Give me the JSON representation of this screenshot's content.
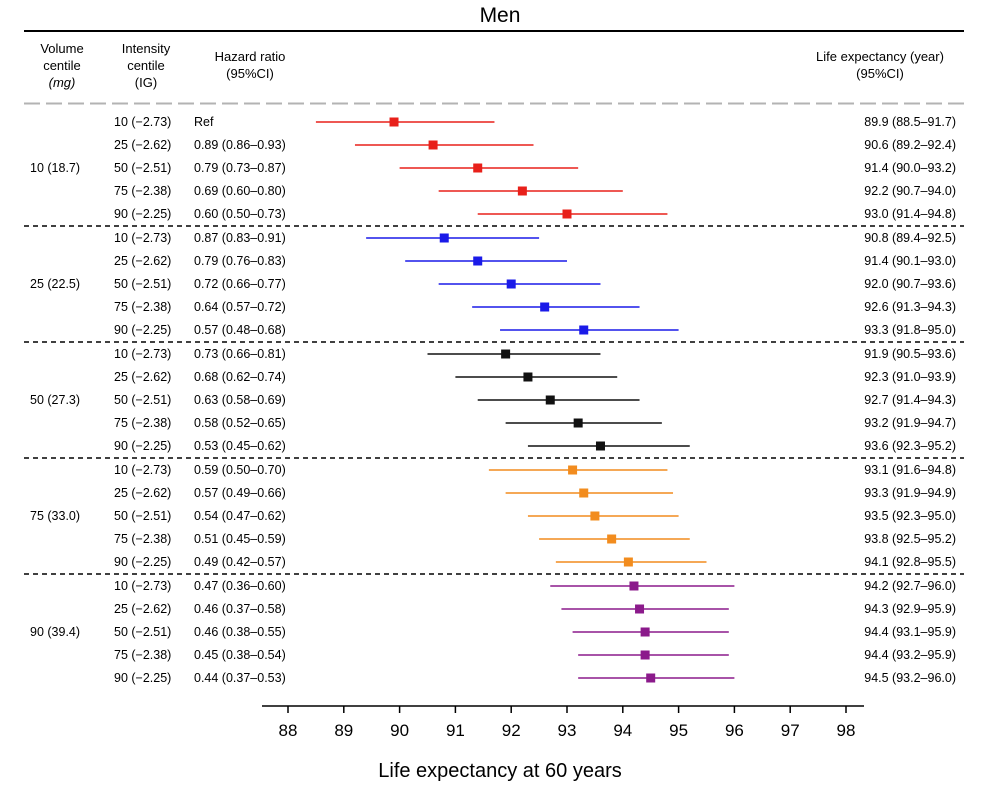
{
  "panel_title": "Men",
  "headers": {
    "volume_line1": "Volume",
    "volume_line2": "centile",
    "volume_unit": "(mg)",
    "intensity_line1": "Intensity",
    "intensity_line2": "centile",
    "intensity_line3": "(IG)",
    "hr_line1": "Hazard ratio",
    "hr_line2": "(95%CI)",
    "le_line1": "Life expectancy (year)",
    "le_line2": "(95%CI)"
  },
  "chart_data": {
    "type": "forest",
    "xlabel": "Life expectancy at 60 years",
    "xlim": [
      88,
      98
    ],
    "xticks": [
      "88",
      "89",
      "90",
      "91",
      "92",
      "93",
      "94",
      "95",
      "96",
      "97",
      "98"
    ],
    "groups": [
      {
        "label": "10 (18.7)",
        "color": "#e8201a",
        "rows": [
          {
            "intensity": "10 (−2.73)",
            "hr": "Ref",
            "le": "89.9 (88.5–91.7)",
            "est": 89.9,
            "lo": 88.5,
            "hi": 91.7
          },
          {
            "intensity": "25 (−2.62)",
            "hr": "0.89 (0.86–0.93)",
            "le": "90.6 (89.2–92.4)",
            "est": 90.6,
            "lo": 89.2,
            "hi": 92.4
          },
          {
            "intensity": "50 (−2.51)",
            "hr": "0.79 (0.73–0.87)",
            "le": "91.4 (90.0–93.2)",
            "est": 91.4,
            "lo": 90.0,
            "hi": 93.2
          },
          {
            "intensity": "75 (−2.38)",
            "hr": "0.69 (0.60–0.80)",
            "le": "92.2 (90.7–94.0)",
            "est": 92.2,
            "lo": 90.7,
            "hi": 94.0
          },
          {
            "intensity": "90 (−2.25)",
            "hr": "0.60 (0.50–0.73)",
            "le": "93.0 (91.4–94.8)",
            "est": 93.0,
            "lo": 91.4,
            "hi": 94.8
          }
        ]
      },
      {
        "label": "25 (22.5)",
        "color": "#1a1ae8",
        "rows": [
          {
            "intensity": "10 (−2.73)",
            "hr": "0.87 (0.83–0.91)",
            "le": "90.8 (89.4–92.5)",
            "est": 90.8,
            "lo": 89.4,
            "hi": 92.5
          },
          {
            "intensity": "25 (−2.62)",
            "hr": "0.79 (0.76–0.83)",
            "le": "91.4 (90.1–93.0)",
            "est": 91.4,
            "lo": 90.1,
            "hi": 93.0
          },
          {
            "intensity": "50 (−2.51)",
            "hr": "0.72 (0.66–0.77)",
            "le": "92.0 (90.7–93.6)",
            "est": 92.0,
            "lo": 90.7,
            "hi": 93.6
          },
          {
            "intensity": "75 (−2.38)",
            "hr": "0.64 (0.57–0.72)",
            "le": "92.6 (91.3–94.3)",
            "est": 92.6,
            "lo": 91.3,
            "hi": 94.3
          },
          {
            "intensity": "90 (−2.25)",
            "hr": "0.57 (0.48–0.68)",
            "le": "93.3 (91.8–95.0)",
            "est": 93.3,
            "lo": 91.8,
            "hi": 95.0
          }
        ]
      },
      {
        "label": "50 (27.3)",
        "color": "#111111",
        "rows": [
          {
            "intensity": "10 (−2.73)",
            "hr": "0.73 (0.66–0.81)",
            "le": "91.9 (90.5–93.6)",
            "est": 91.9,
            "lo": 90.5,
            "hi": 93.6
          },
          {
            "intensity": "25 (−2.62)",
            "hr": "0.68 (0.62–0.74)",
            "le": "92.3 (91.0–93.9)",
            "est": 92.3,
            "lo": 91.0,
            "hi": 93.9
          },
          {
            "intensity": "50 (−2.51)",
            "hr": "0.63 (0.58–0.69)",
            "le": "92.7 (91.4–94.3)",
            "est": 92.7,
            "lo": 91.4,
            "hi": 94.3
          },
          {
            "intensity": "75 (−2.38)",
            "hr": "0.58 (0.52–0.65)",
            "le": "93.2 (91.9–94.7)",
            "est": 93.2,
            "lo": 91.9,
            "hi": 94.7
          },
          {
            "intensity": "90 (−2.25)",
            "hr": "0.53 (0.45–0.62)",
            "le": "93.6 (92.3–95.2)",
            "est": 93.6,
            "lo": 92.3,
            "hi": 95.2
          }
        ]
      },
      {
        "label": "75 (33.0)",
        "color": "#f28c1e",
        "rows": [
          {
            "intensity": "10 (−2.73)",
            "hr": "0.59 (0.50–0.70)",
            "le": "93.1 (91.6–94.8)",
            "est": 93.1,
            "lo": 91.6,
            "hi": 94.8
          },
          {
            "intensity": "25 (−2.62)",
            "hr": "0.57 (0.49–0.66)",
            "le": "93.3 (91.9–94.9)",
            "est": 93.3,
            "lo": 91.9,
            "hi": 94.9
          },
          {
            "intensity": "50 (−2.51)",
            "hr": "0.54 (0.47–0.62)",
            "le": "93.5 (92.3–95.0)",
            "est": 93.5,
            "lo": 92.3,
            "hi": 95.0
          },
          {
            "intensity": "75 (−2.38)",
            "hr": "0.51 (0.45–0.59)",
            "le": "93.8 (92.5–95.2)",
            "est": 93.8,
            "lo": 92.5,
            "hi": 95.2
          },
          {
            "intensity": "90 (−2.25)",
            "hr": "0.49 (0.42–0.57)",
            "le": "94.1 (92.8–95.5)",
            "est": 94.1,
            "lo": 92.8,
            "hi": 95.5
          }
        ]
      },
      {
        "label": "90 (39.4)",
        "color": "#8b1a8b",
        "rows": [
          {
            "intensity": "10 (−2.73)",
            "hr": "0.47 (0.36–0.60)",
            "le": "94.2 (92.7–96.0)",
            "est": 94.2,
            "lo": 92.7,
            "hi": 96.0
          },
          {
            "intensity": "25 (−2.62)",
            "hr": "0.46 (0.37–0.58)",
            "le": "94.3 (92.9–95.9)",
            "est": 94.3,
            "lo": 92.9,
            "hi": 95.9
          },
          {
            "intensity": "50 (−2.51)",
            "hr": "0.46 (0.38–0.55)",
            "le": "94.4 (93.1–95.9)",
            "est": 94.4,
            "lo": 93.1,
            "hi": 95.9
          },
          {
            "intensity": "75 (−2.38)",
            "hr": "0.45 (0.38–0.54)",
            "le": "94.4 (93.2–95.9)",
            "est": 94.4,
            "lo": 93.2,
            "hi": 95.9
          },
          {
            "intensity": "90 (−2.25)",
            "hr": "0.44 (0.37–0.53)",
            "le": "94.5 (93.2–96.0)",
            "est": 94.5,
            "lo": 93.2,
            "hi": 96.0
          }
        ]
      }
    ]
  }
}
